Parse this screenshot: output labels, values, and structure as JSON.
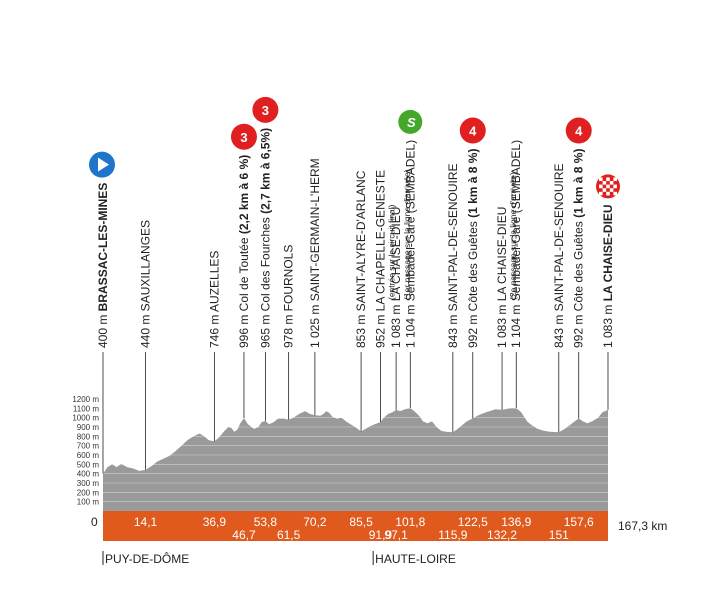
{
  "chart_data": {
    "type": "area",
    "title": "",
    "xlabel": "",
    "ylabel": "",
    "total_km_label": "167,3 km",
    "start_km_label": "0",
    "x_range_km": [
      0,
      167.3
    ],
    "y_range_m": [
      0,
      1250
    ],
    "y_ticks": [
      "100 m",
      "200 m",
      "300 m",
      "400 m",
      "500 m",
      "600 m",
      "700 m",
      "800 m",
      "900 m",
      "1000 m",
      "1100 m",
      "1200 m"
    ],
    "y_tick_values": [
      100,
      200,
      300,
      400,
      500,
      600,
      700,
      800,
      900,
      1000,
      1100,
      1200
    ],
    "colors": {
      "profile": "#9a9a9a",
      "base": "#e05a1e",
      "start": "#1f75c9",
      "climb": "#e02020",
      "sprint": "#43a829",
      "line": "#222222"
    },
    "profile": [
      [
        0,
        400
      ],
      [
        1.5,
        470
      ],
      [
        3,
        500
      ],
      [
        4.5,
        470
      ],
      [
        6,
        505
      ],
      [
        8,
        470
      ],
      [
        10,
        455
      ],
      [
        12,
        430
      ],
      [
        14.1,
        440
      ],
      [
        16,
        480
      ],
      [
        18,
        530
      ],
      [
        20,
        560
      ],
      [
        22,
        590
      ],
      [
        24,
        640
      ],
      [
        26,
        700
      ],
      [
        28,
        760
      ],
      [
        30,
        800
      ],
      [
        32,
        830
      ],
      [
        33.5,
        800
      ],
      [
        35,
        760
      ],
      [
        36.9,
        746
      ],
      [
        38.5,
        790
      ],
      [
        40,
        850
      ],
      [
        41.5,
        900
      ],
      [
        42.5,
        890
      ],
      [
        43.5,
        850
      ],
      [
        44.5,
        870
      ],
      [
        45.5,
        940
      ],
      [
        46.7,
        996
      ],
      [
        48,
        930
      ],
      [
        50,
        880
      ],
      [
        51.5,
        900
      ],
      [
        52.5,
        950
      ],
      [
        53.8,
        965
      ],
      [
        55,
        930
      ],
      [
        56.5,
        950
      ],
      [
        58,
        990
      ],
      [
        60,
        990
      ],
      [
        61.5,
        978
      ],
      [
        63,
        1000
      ],
      [
        65,
        1040
      ],
      [
        67,
        1070
      ],
      [
        68.5,
        1040
      ],
      [
        70.2,
        1025
      ],
      [
        72,
        1020
      ],
      [
        73,
        1040
      ],
      [
        74,
        1070
      ],
      [
        75,
        1050
      ],
      [
        76,
        1010
      ],
      [
        77.5,
        990
      ],
      [
        79,
        1000
      ],
      [
        80.5,
        960
      ],
      [
        82,
        930
      ],
      [
        83.5,
        900
      ],
      [
        85.5,
        853
      ],
      [
        87,
        880
      ],
      [
        88.5,
        910
      ],
      [
        90,
        930
      ],
      [
        91.9,
        952
      ],
      [
        93,
        1000
      ],
      [
        94.5,
        1040
      ],
      [
        96,
        1060
      ],
      [
        97.1,
        1083
      ],
      [
        98.5,
        1070
      ],
      [
        100,
        1090
      ],
      [
        101.8,
        1104
      ],
      [
        103.5,
        1060
      ],
      [
        105,
        1010
      ],
      [
        106,
        960
      ],
      [
        107.5,
        940
      ],
      [
        109,
        960
      ],
      [
        110.5,
        900
      ],
      [
        112,
        860
      ],
      [
        113.5,
        850
      ],
      [
        115.9,
        843
      ],
      [
        117.5,
        880
      ],
      [
        119,
        920
      ],
      [
        120.5,
        960
      ],
      [
        122.5,
        992
      ],
      [
        124,
        1020
      ],
      [
        125.5,
        1040
      ],
      [
        127,
        1060
      ],
      [
        128.5,
        1075
      ],
      [
        130,
        1090
      ],
      [
        132.2,
        1083
      ],
      [
        134,
        1095
      ],
      [
        135,
        1104
      ],
      [
        136.9,
        1104
      ],
      [
        138.5,
        1060
      ],
      [
        139.5,
        1010
      ],
      [
        140.5,
        960
      ],
      [
        142,
        920
      ],
      [
        144,
        880
      ],
      [
        146,
        860
      ],
      [
        148,
        850
      ],
      [
        151,
        843
      ],
      [
        153,
        880
      ],
      [
        155,
        930
      ],
      [
        157.6,
        992
      ],
      [
        159,
        960
      ],
      [
        160.5,
        940
      ],
      [
        162,
        960
      ],
      [
        164,
        1000
      ],
      [
        165.5,
        1060
      ],
      [
        167.3,
        1083
      ]
    ],
    "points": [
      {
        "km": 0,
        "name": "BRASSAC-LES-MINES",
        "alt": "400 m",
        "bold": true
      },
      {
        "km": 14.1,
        "name": "SAUXILLANGES",
        "alt": "440 m"
      },
      {
        "km": 36.9,
        "name": "AUZELLES",
        "alt": "746 m"
      },
      {
        "km": 46.7,
        "name": "Col de Toutée",
        "name_bold": "(2,2 km à 6 %)",
        "alt": "996 m",
        "climb": "3"
      },
      {
        "km": 53.8,
        "name": "Col des Fourches",
        "name_bold": "(2,7 km à 6,5%)",
        "alt": "965 m",
        "climb": "3"
      },
      {
        "km": 61.5,
        "name": "FOURNOLS",
        "alt": "978 m"
      },
      {
        "km": 70.2,
        "name": "SAINT-GERMAIN-L'HERM",
        "alt": "1 025 m"
      },
      {
        "km": 85.5,
        "name": "SAINT-ALYRE-D'ARLANC",
        "alt": "853 m"
      },
      {
        "km": 91.9,
        "name": "LA CHAPELLE-GENESTE",
        "sub": "(entrée sur le circuit final)",
        "alt": "952 m"
      },
      {
        "km": 97.1,
        "name": "LA CHAISE-DIEU",
        "sub": "(1er passage sur la ligne d'arrivée)",
        "alt": "1 083 m"
      },
      {
        "km": 101.8,
        "name": "Sembadel-Gare (SEMBADEL)",
        "alt": "1 104 m",
        "sprint": "S"
      },
      {
        "km": 115.9,
        "name": "SAINT-PAL-DE-SENOUIRE",
        "alt": "843 m"
      },
      {
        "km": 122.5,
        "name": "Côte des Guêtes",
        "name_bold": "(1 km à 8 %)",
        "alt": "992 m",
        "climb": "4"
      },
      {
        "km": 132.2,
        "name": "LA CHAISE-DIEU",
        "sub": "(2e passage sur la ligne d'arrivée)",
        "alt": "1 083 m"
      },
      {
        "km": 136.9,
        "name": "Sembadel-Gare (SEMBADEL)",
        "alt": "1 104 m"
      },
      {
        "km": 151,
        "name": "SAINT-PAL-DE-SENOUIRE",
        "alt": "843 m"
      },
      {
        "km": 157.6,
        "name": "Côte des Guêtes",
        "name_bold": "(1 km à 8 %)",
        "alt": "992 m",
        "climb": "4"
      },
      {
        "km": 167.3,
        "name": "LA CHAISE-DIEU",
        "alt": "1 083 m",
        "bold": true,
        "finish": true
      }
    ],
    "km_labels_top": [
      {
        "km": 14.1,
        "text": "14,1"
      },
      {
        "km": 36.9,
        "text": "36,9"
      },
      {
        "km": 53.8,
        "text": "53,8"
      },
      {
        "km": 70.2,
        "text": "70,2"
      },
      {
        "km": 85.5,
        "text": "85,5"
      },
      {
        "km": 101.8,
        "text": "101,8"
      },
      {
        "km": 122.5,
        "text": "122,5"
      },
      {
        "km": 136.9,
        "text": "136,9"
      },
      {
        "km": 157.6,
        "text": "157,6"
      }
    ],
    "km_labels_bottom": [
      {
        "km": 46.7,
        "text": "46,7"
      },
      {
        "km": 61.5,
        "text": "61,5"
      },
      {
        "km": 91.9,
        "text": "91,9"
      },
      {
        "km": 97.1,
        "text": "97,1"
      },
      {
        "km": 115.9,
        "text": "115,9"
      },
      {
        "km": 132.2,
        "text": "132,2"
      },
      {
        "km": 151,
        "text": "151"
      }
    ],
    "regions": [
      {
        "km": 0,
        "text": "PUY-DE-DÔME"
      },
      {
        "km": 89.5,
        "text": "HAUTE-LOIRE"
      }
    ]
  }
}
